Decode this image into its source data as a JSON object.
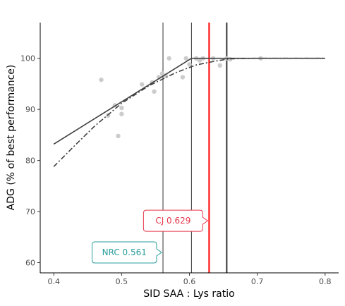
{
  "chart_data": {
    "type": "scatter",
    "xlabel": "SID SAA : Lys ratio",
    "ylabel": "ADG (% of best performance)",
    "xlim": [
      0.38,
      0.82
    ],
    "ylim": [
      58,
      107
    ],
    "x_ticks": [
      "0.4",
      "0.5",
      "0.6",
      "0.7",
      "0.8"
    ],
    "y_ticks": [
      "60",
      "70",
      "80",
      "90",
      "100"
    ],
    "grid": false,
    "points": [
      {
        "x": 0.47,
        "y": 95.8
      },
      {
        "x": 0.48,
        "y": 88.8
      },
      {
        "x": 0.49,
        "y": 90.8
      },
      {
        "x": 0.495,
        "y": 84.8
      },
      {
        "x": 0.5,
        "y": 90.3
      },
      {
        "x": 0.5,
        "y": 89.1
      },
      {
        "x": 0.53,
        "y": 94.9
      },
      {
        "x": 0.545,
        "y": 95.3
      },
      {
        "x": 0.548,
        "y": 93.5
      },
      {
        "x": 0.555,
        "y": 96.3
      },
      {
        "x": 0.56,
        "y": 97.0
      },
      {
        "x": 0.565,
        "y": 96.6
      },
      {
        "x": 0.57,
        "y": 100.0
      },
      {
        "x": 0.59,
        "y": 96.3
      },
      {
        "x": 0.595,
        "y": 100.0
      },
      {
        "x": 0.6,
        "y": 98.8
      },
      {
        "x": 0.61,
        "y": 100.0
      },
      {
        "x": 0.615,
        "y": 99.6
      },
      {
        "x": 0.62,
        "y": 100.0
      },
      {
        "x": 0.635,
        "y": 100.0
      },
      {
        "x": 0.645,
        "y": 98.6
      },
      {
        "x": 0.655,
        "y": 100.0
      },
      {
        "x": 0.66,
        "y": 99.8
      },
      {
        "x": 0.705,
        "y": 100.0
      }
    ],
    "lines": [
      {
        "style": "solid",
        "x": [
          0.4,
          0.603,
          0.8
        ],
        "y": [
          83.2,
          100.0,
          100.0
        ]
      },
      {
        "style": "dashdot",
        "x": [
          0.4,
          0.43,
          0.46,
          0.5,
          0.54,
          0.58,
          0.61,
          0.64,
          0.66,
          0.7,
          0.8
        ],
        "y": [
          78.8,
          82.8,
          86.7,
          91.2,
          94.6,
          97.2,
          98.7,
          99.5,
          99.9,
          100.0,
          100.0
        ]
      }
    ],
    "vlines": [
      {
        "x": 0.561,
        "color": "#333333",
        "width": 1
      },
      {
        "x": 0.603,
        "color": "#333333",
        "width": 1
      },
      {
        "x": 0.629,
        "color": "#ff0000",
        "width": 2
      },
      {
        "x": 0.655,
        "color": "#333333",
        "width": 2
      }
    ],
    "annotations": [
      {
        "text": "CJ 0.629",
        "x": 0.629,
        "y": 68.2,
        "color": "#e8364a"
      },
      {
        "text": "NRC 0.561",
        "x": 0.561,
        "y": 62.0,
        "color": "#2a9d9d"
      }
    ],
    "colors": {
      "points": "#cccccc",
      "fit_line": "#404040",
      "axis": "#000000"
    }
  }
}
